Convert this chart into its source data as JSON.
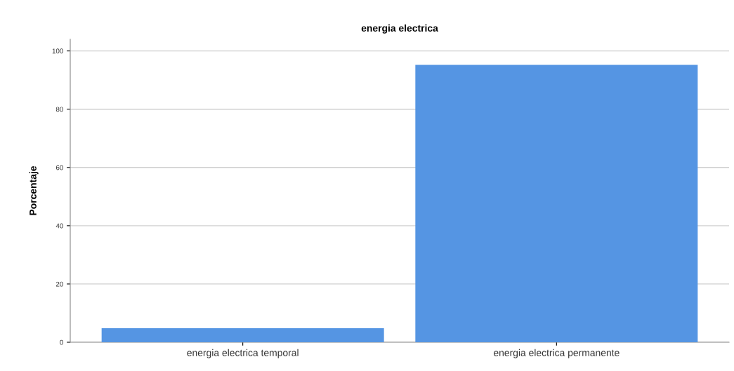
{
  "chart_data": {
    "type": "bar",
    "title": "energia electrica",
    "ylabel": "Porcentaje",
    "categories": [
      "energia electrica temporal",
      "energia electrica permanente"
    ],
    "values": [
      4.8,
      95.2
    ],
    "color": "#5595e3",
    "ylim": [
      0,
      104
    ],
    "yticks": [
      0,
      20,
      40,
      60,
      80,
      100
    ],
    "grid": "y"
  }
}
